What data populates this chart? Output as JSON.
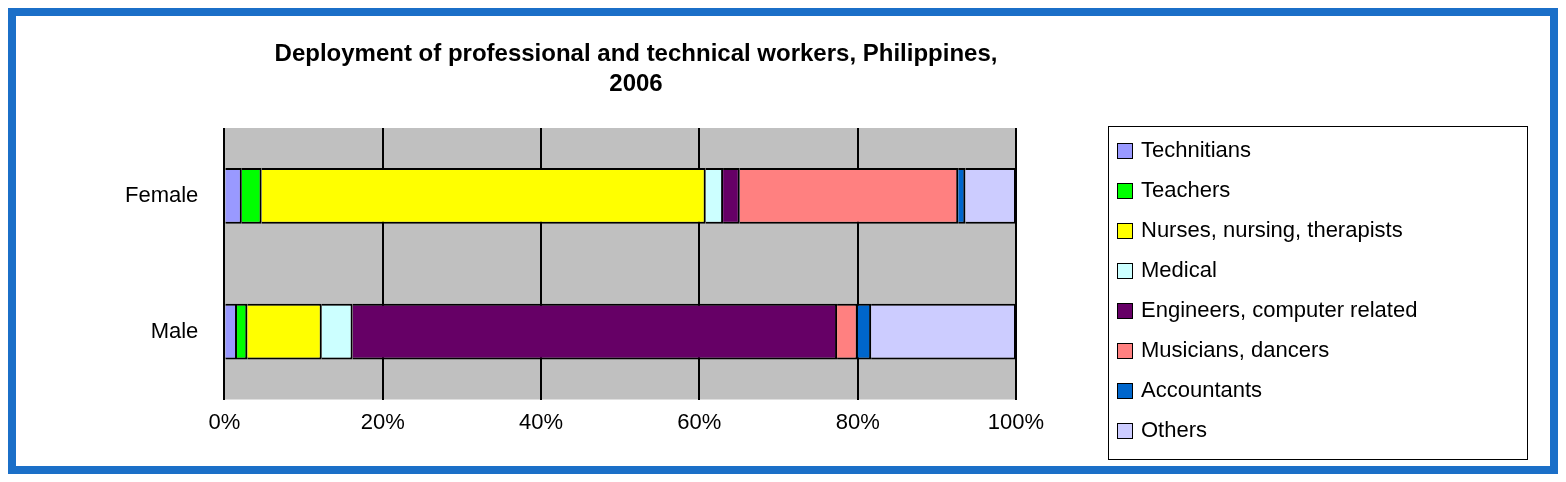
{
  "chart_data": {
    "type": "bar",
    "orientation": "horizontal",
    "stacked": true,
    "title": "Deployment of professional and technical workers, Philippines, 2006",
    "categories": [
      "Female",
      "Male"
    ],
    "series": [
      {
        "name": "Technitians",
        "color": "#9999ff",
        "values": [
          2.2,
          1.6
        ]
      },
      {
        "name": "Teachers",
        "color": "#00ff00",
        "values": [
          2.5,
          1.3
        ]
      },
      {
        "name": "Nurses, nursing, therapists",
        "color": "#ffff00",
        "values": [
          56.1,
          9.4
        ]
      },
      {
        "name": "Medical",
        "color": "#ccffff",
        "values": [
          2.2,
          3.9
        ]
      },
      {
        "name": "Engineers, computer related",
        "color": "#660066",
        "values": [
          2.1,
          61.2
        ]
      },
      {
        "name": "Musicians, dancers",
        "color": "#ff8080",
        "values": [
          27.6,
          2.6
        ]
      },
      {
        "name": "Accountants",
        "color": "#0066cc",
        "values": [
          0.9,
          1.7
        ]
      },
      {
        "name": "Others",
        "color": "#ccccff",
        "values": [
          6.4,
          18.3
        ]
      }
    ],
    "xlim": [
      0,
      100
    ],
    "xticks": [
      {
        "value": 0,
        "label": "0%"
      },
      {
        "value": 20,
        "label": "20%"
      },
      {
        "value": 40,
        "label": "40%"
      },
      {
        "value": 60,
        "label": "60%"
      },
      {
        "value": 80,
        "label": "80%"
      },
      {
        "value": 100,
        "label": "100%"
      }
    ],
    "grid": "x",
    "legend": "right"
  }
}
